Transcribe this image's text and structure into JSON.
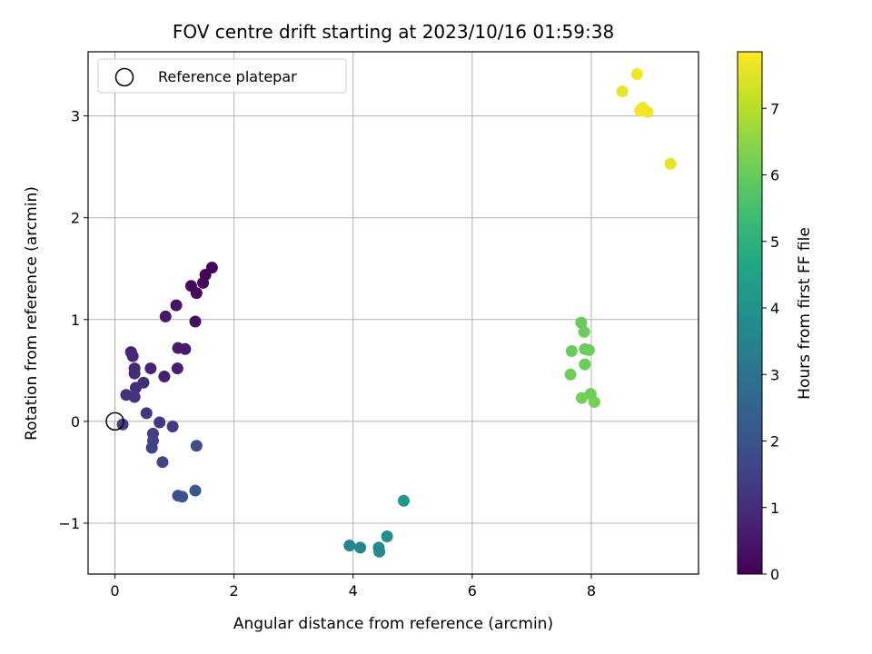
{
  "chart_data": {
    "type": "scatter",
    "title": "FOV centre drift starting at 2023/10/16 01:59:38",
    "xlabel": "Angular distance from reference (arcmin)",
    "ylabel": "Rotation from reference (arcmin)",
    "xlim": [
      -0.45,
      9.8
    ],
    "ylim": [
      -1.5,
      3.63
    ],
    "xticks": [
      0,
      2,
      4,
      6,
      8
    ],
    "yticks": [
      -1,
      0,
      1,
      2,
      3
    ],
    "xtick_labels": [
      "0",
      "2",
      "4",
      "6",
      "8"
    ],
    "ytick_labels": [
      "−1",
      "0",
      "1",
      "2",
      "3"
    ],
    "grid": true,
    "legend": {
      "label": "Reference platepar",
      "placement": "top-left",
      "marker": "hollow-circle"
    },
    "reference_point": {
      "x": 0,
      "y": 0
    },
    "colorbar": {
      "label": "Hours from first FF file",
      "colormap": "viridis",
      "range": [
        0,
        7.85
      ],
      "ticks": [
        0,
        1,
        2,
        3,
        4,
        5,
        6,
        7
      ],
      "tick_labels": [
        "0",
        "1",
        "2",
        "3",
        "4",
        "5",
        "6",
        "7"
      ]
    },
    "points": [
      {
        "x": 1.63,
        "y": 1.51,
        "c": 0.05
      },
      {
        "x": 1.52,
        "y": 1.44,
        "c": 0.1
      },
      {
        "x": 1.48,
        "y": 1.36,
        "c": 0.15
      },
      {
        "x": 1.28,
        "y": 1.33,
        "c": 0.2
      },
      {
        "x": 1.37,
        "y": 1.26,
        "c": 0.25
      },
      {
        "x": 1.35,
        "y": 0.98,
        "c": 0.3
      },
      {
        "x": 1.03,
        "y": 1.14,
        "c": 0.4
      },
      {
        "x": 0.85,
        "y": 1.03,
        "c": 0.5
      },
      {
        "x": 1.06,
        "y": 0.72,
        "c": 0.55
      },
      {
        "x": 1.18,
        "y": 0.71,
        "c": 0.6
      },
      {
        "x": 1.05,
        "y": 0.52,
        "c": 0.65
      },
      {
        "x": 0.83,
        "y": 0.44,
        "c": 0.7
      },
      {
        "x": 0.6,
        "y": 0.52,
        "c": 0.75
      },
      {
        "x": 0.27,
        "y": 0.68,
        "c": 0.8
      },
      {
        "x": 0.3,
        "y": 0.64,
        "c": 0.85
      },
      {
        "x": 0.33,
        "y": 0.52,
        "c": 0.9
      },
      {
        "x": 0.33,
        "y": 0.47,
        "c": 0.95
      },
      {
        "x": 0.48,
        "y": 0.38,
        "c": 1.0
      },
      {
        "x": 0.35,
        "y": 0.33,
        "c": 1.05
      },
      {
        "x": 0.19,
        "y": 0.26,
        "c": 1.1
      },
      {
        "x": 0.33,
        "y": 0.24,
        "c": 1.15
      },
      {
        "x": 0.53,
        "y": 0.08,
        "c": 1.2
      },
      {
        "x": 0.75,
        "y": -0.01,
        "c": 1.3
      },
      {
        "x": 0.97,
        "y": -0.05,
        "c": 1.35
      },
      {
        "x": 0.13,
        "y": -0.03,
        "c": 1.4
      },
      {
        "x": 0.64,
        "y": -0.12,
        "c": 1.45
      },
      {
        "x": 0.64,
        "y": -0.19,
        "c": 1.5
      },
      {
        "x": 0.62,
        "y": -0.26,
        "c": 1.55
      },
      {
        "x": 0.8,
        "y": -0.4,
        "c": 1.6
      },
      {
        "x": 1.37,
        "y": -0.24,
        "c": 1.85
      },
      {
        "x": 1.06,
        "y": -0.73,
        "c": 1.95
      },
      {
        "x": 1.13,
        "y": -0.74,
        "c": 2.0
      },
      {
        "x": 1.35,
        "y": -0.68,
        "c": 2.1
      },
      {
        "x": 3.94,
        "y": -1.22,
        "c": 3.55
      },
      {
        "x": 4.12,
        "y": -1.24,
        "c": 3.6
      },
      {
        "x": 4.43,
        "y": -1.24,
        "c": 3.7
      },
      {
        "x": 4.44,
        "y": -1.28,
        "c": 3.75
      },
      {
        "x": 4.57,
        "y": -1.13,
        "c": 3.85
      },
      {
        "x": 4.85,
        "y": -0.78,
        "c": 4.1
      },
      {
        "x": 7.83,
        "y": 0.97,
        "c": 6.0
      },
      {
        "x": 7.88,
        "y": 0.88,
        "c": 6.05
      },
      {
        "x": 7.67,
        "y": 0.69,
        "c": 6.0
      },
      {
        "x": 7.89,
        "y": 0.71,
        "c": 6.05
      },
      {
        "x": 7.96,
        "y": 0.7,
        "c": 6.1
      },
      {
        "x": 7.89,
        "y": 0.56,
        "c": 6.05
      },
      {
        "x": 7.65,
        "y": 0.46,
        "c": 6.1
      },
      {
        "x": 7.99,
        "y": 0.27,
        "c": 6.1
      },
      {
        "x": 7.84,
        "y": 0.23,
        "c": 6.15
      },
      {
        "x": 8.05,
        "y": 0.19,
        "c": 6.2
      },
      {
        "x": 8.77,
        "y": 3.41,
        "c": 7.7
      },
      {
        "x": 8.52,
        "y": 3.24,
        "c": 7.6
      },
      {
        "x": 8.86,
        "y": 3.08,
        "c": 7.7
      },
      {
        "x": 8.82,
        "y": 3.05,
        "c": 7.75
      },
      {
        "x": 8.94,
        "y": 3.04,
        "c": 7.7
      },
      {
        "x": 9.33,
        "y": 2.53,
        "c": 7.55
      }
    ]
  }
}
